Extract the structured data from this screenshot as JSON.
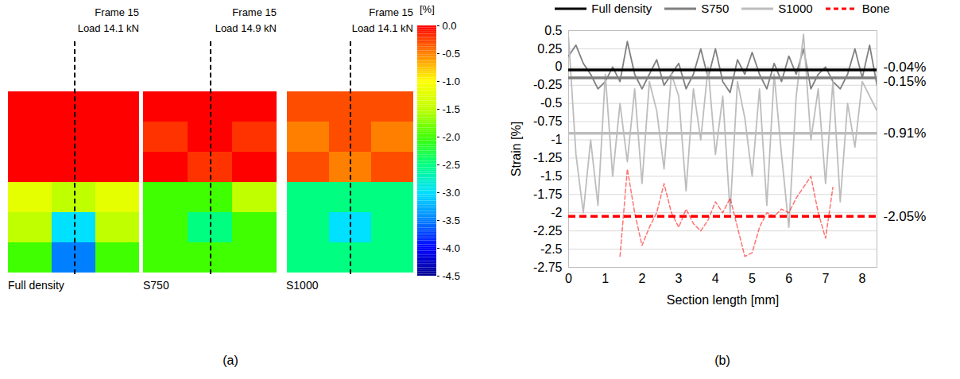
{
  "chart_data": [
    {
      "type": "heatmap",
      "panel_label": "(a)",
      "colorbar": {
        "label": "[%]",
        "range": [
          -4.5,
          0
        ],
        "ticks": [
          {
            "value": 0,
            "label": "0.0"
          },
          -0.5,
          {
            "value": -1,
            "label": "-1.0"
          },
          -1.5,
          {
            "value": -2,
            "label": "-2.0"
          },
          -2.5,
          {
            "value": -3,
            "label": "-3.0"
          },
          -3.5,
          {
            "value": -4,
            "label": "-4.0"
          },
          -4.5
        ]
      },
      "panels": [
        {
          "name": "Full density",
          "frame": "Frame 15",
          "load": "Load 14.1 kN",
          "cells": [
            [
              0,
              0,
              0
            ],
            [
              0,
              0,
              0
            ],
            [
              0,
              0,
              0
            ],
            [
              -1.2,
              -1.5,
              -1.2
            ],
            [
              -1.5,
              -3,
              -1.5
            ],
            [
              -2,
              -3.5,
              -2
            ]
          ]
        },
        {
          "name": "S750",
          "frame": "Frame 15",
          "load": "Load 14.9 kN",
          "cells": [
            [
              0,
              0,
              0
            ],
            [
              -0.2,
              0,
              -0.2
            ],
            [
              0,
              -0.2,
              0
            ],
            [
              -2,
              -2,
              -1.5
            ],
            [
              -2,
              -2.5,
              -2
            ],
            [
              -2,
              -2,
              -2
            ]
          ]
        },
        {
          "name": "S1000",
          "frame": "Frame 15",
          "load": "Load 14.1 kN",
          "cells": [
            [
              -0.3,
              -0.3,
              -0.3
            ],
            [
              -0.5,
              -0.3,
              -0.5
            ],
            [
              -0.3,
              -0.5,
              -0.3
            ],
            [
              -2.5,
              -2.5,
              -2.5
            ],
            [
              -2.5,
              -3,
              -2.5
            ],
            [
              -2.5,
              -2.5,
              -2.5
            ]
          ]
        }
      ]
    },
    {
      "type": "line",
      "panel_label": "(b)",
      "xlabel": "Section length [mm]",
      "ylabel": "Strain [%]",
      "grid": true,
      "legend": "top",
      "xlim": [
        0,
        8.4
      ],
      "xticks": [
        0,
        1,
        2,
        3,
        4,
        5,
        6,
        7,
        8
      ],
      "ylim": [
        -2.75,
        0.5
      ],
      "yticks": [
        0.5,
        0.25,
        0,
        -0.25,
        -0.5,
        -0.75,
        -1,
        -1.25,
        -1.5,
        -1.75,
        -2,
        -2.25,
        -2.5,
        -2.75
      ],
      "x": [
        0,
        0.2,
        0.4,
        0.6,
        0.8,
        1,
        1.2,
        1.4,
        1.6,
        1.8,
        2,
        2.2,
        2.4,
        2.6,
        2.8,
        3,
        3.2,
        3.4,
        3.6,
        3.8,
        4,
        4.2,
        4.4,
        4.6,
        4.8,
        5,
        5.2,
        5.4,
        5.6,
        5.8,
        6,
        6.2,
        6.4,
        6.6,
        6.8,
        7,
        7.2,
        7.4,
        7.6,
        7.8,
        8,
        8.2,
        8.4
      ],
      "series": [
        {
          "name": "Full density",
          "color": "#000000",
          "line_style": "solid",
          "mean": -0.04,
          "mean_label": "-0.04%",
          "values": [
            -0.04,
            -0.04,
            -0.04,
            -0.04,
            -0.04,
            -0.04,
            -0.04,
            -0.04,
            -0.04,
            -0.04,
            -0.04,
            -0.04,
            -0.04,
            -0.04,
            -0.04,
            -0.04,
            -0.04,
            -0.04,
            -0.04,
            -0.04,
            -0.04,
            -0.04,
            -0.04,
            -0.04,
            -0.04,
            -0.04,
            -0.04,
            -0.04,
            -0.04,
            -0.04,
            -0.04,
            -0.04,
            -0.04,
            -0.04,
            -0.04,
            -0.04,
            -0.04,
            -0.04,
            -0.04,
            -0.04,
            -0.04,
            -0.04,
            -0.04
          ]
        },
        {
          "name": "S750",
          "color": "#808080",
          "line_style": "solid",
          "mean": -0.15,
          "mean_label": "-0.15%",
          "values": [
            0.15,
            0.3,
            0.05,
            -0.1,
            -0.3,
            -0.2,
            0,
            -0.2,
            0.35,
            -0.1,
            -0.3,
            -0.1,
            0.1,
            -0.25,
            -0.1,
            0.05,
            -0.3,
            -0.1,
            0.25,
            -0.15,
            0.25,
            -0.2,
            -0.35,
            0.1,
            -0.1,
            0.2,
            -0.1,
            -0.3,
            0.05,
            -0.2,
            0.15,
            -0.1,
            0.25,
            -0.3,
            -0.1,
            0,
            -0.2,
            -0.3,
            -0.1,
            0.25,
            -0.15,
            0.3,
            -0.25
          ]
        },
        {
          "name": "S1000",
          "color": "#bdbdbd",
          "line_style": "solid",
          "mean": -0.91,
          "mean_label": "-0.91%",
          "values": [
            0.4,
            -1.2,
            -2,
            -1,
            -1.9,
            -0.1,
            -1.5,
            -0.5,
            -1.3,
            -0.3,
            -1.6,
            -0.2,
            -0.6,
            -1.4,
            -0.1,
            -0.4,
            -1.7,
            -0.3,
            -1,
            0,
            -1.2,
            -0.4,
            -2,
            -0.2,
            -0.7,
            -1.5,
            -0.3,
            -1.9,
            -0.1,
            -1.2,
            -2.2,
            -0.4,
            0.45,
            -1,
            -0.3,
            -1.6,
            -0.2,
            -1.85,
            -0.5,
            -1.1,
            -0.2,
            -0.4,
            -0.6
          ]
        },
        {
          "name": "Bone",
          "color": "#ff0000",
          "line_style": "dashed",
          "mean": -2.05,
          "mean_label": "-2.05%",
          "values": [
            null,
            null,
            null,
            null,
            null,
            null,
            null,
            -2.6,
            -1.4,
            -2,
            -2.45,
            -2.2,
            -2,
            -1.6,
            -2,
            -2.2,
            -1.95,
            -2.15,
            -2.25,
            -2.1,
            -1.85,
            -2,
            -1.8,
            -2.2,
            -2.6,
            -2.55,
            -2.2,
            -2,
            -2.05,
            -1.95,
            -2,
            -1.8,
            -1.65,
            -1.5,
            -2,
            -2.35,
            -1.65,
            null,
            null,
            null,
            null,
            null,
            null
          ]
        }
      ]
    }
  ]
}
